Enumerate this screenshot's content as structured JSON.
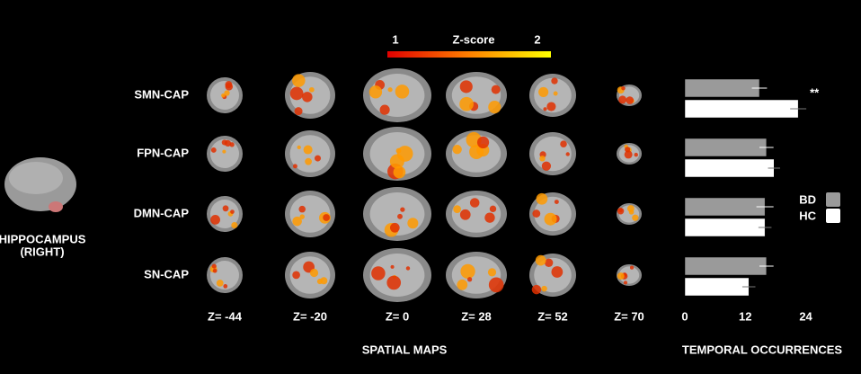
{
  "seed_label": [
    "HIPPOCAMPUS",
    "(RIGHT)"
  ],
  "colorbar": {
    "title": "Z-score",
    "lim": [
      1,
      2
    ],
    "ticks": [
      1,
      2
    ]
  },
  "slices": [
    "Z= -44",
    "Z= -20",
    "Z= 0",
    "Z= 28",
    "Z= 52",
    "Z= 70"
  ],
  "spatial_maps_label": "SPATIAL MAPS",
  "chart_data": {
    "type": "bar",
    "orientation": "horizontal",
    "categories": [
      "SMN-CAP",
      "FPN-CAP",
      "DMN-CAP",
      "SN-CAP"
    ],
    "series": [
      {
        "name": "BD",
        "color": "#9a9a9a",
        "values": [
          14.8,
          16.2,
          15.9,
          16.2
        ],
        "errors": [
          1.5,
          1.4,
          1.7,
          1.4
        ]
      },
      {
        "name": "HC",
        "color": "#ffffff",
        "values": [
          22.5,
          17.7,
          15.9,
          12.7
        ],
        "errors": [
          1.6,
          1.2,
          1.3,
          1.3
        ]
      }
    ],
    "xlim": [
      0,
      28
    ],
    "xticks": [
      0,
      12,
      24
    ],
    "xlabel": "TEMPORAL OCCURRENCES",
    "annotations": [
      {
        "category": 0,
        "text": "**"
      }
    ],
    "legend": "right"
  }
}
